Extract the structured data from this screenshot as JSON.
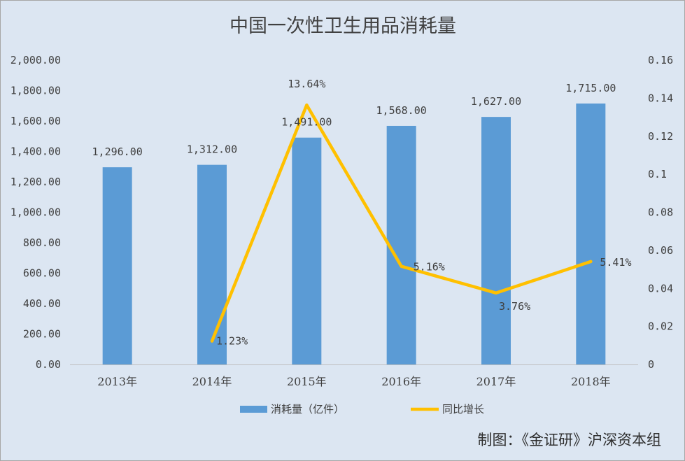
{
  "chart_data": {
    "type": "bar",
    "title": "中国一次性卫生用品消耗量",
    "categories": [
      "2013年",
      "2014年",
      "2015年",
      "2016年",
      "2017年",
      "2018年"
    ],
    "series": [
      {
        "name": "消耗量（亿件）",
        "type": "bar",
        "axis": "left",
        "values": [
          1296.0,
          1312.0,
          1491.0,
          1568.0,
          1627.0,
          1715.0
        ],
        "labels": [
          "1,296.00",
          "1,312.00",
          "1,491.00",
          "1,568.00",
          "1,627.00",
          "1,715.00"
        ],
        "color": "#5b9bd5"
      },
      {
        "name": "同比增长",
        "type": "line",
        "axis": "right",
        "x": [
          "2014年",
          "2015年",
          "2016年",
          "2017年",
          "2018年"
        ],
        "values": [
          0.0123,
          0.1364,
          0.0516,
          0.0376,
          0.0541
        ],
        "labels": [
          "1.23%",
          "13.64%",
          "5.16%",
          "3.76%",
          "5.41%"
        ],
        "color": "#ffc000"
      }
    ],
    "y_left": {
      "ylim": [
        0,
        2000
      ],
      "ticks": [
        0,
        200,
        400,
        600,
        800,
        1000,
        1200,
        1400,
        1600,
        1800,
        2000
      ],
      "tick_labels": [
        "0.00",
        "200.00",
        "400.00",
        "600.00",
        "800.00",
        "1,000.00",
        "1,200.00",
        "1,400.00",
        "1,600.00",
        "1,800.00",
        "2,000.00"
      ]
    },
    "y_right": {
      "ylim": [
        0,
        0.16
      ],
      "ticks": [
        0,
        0.02,
        0.04,
        0.06,
        0.08,
        0.1,
        0.12,
        0.14,
        0.16
      ],
      "tick_labels": [
        "0",
        "0.02",
        "0.04",
        "0.06",
        "0.08",
        "0.1",
        "0.12",
        "0.14",
        "0.16"
      ]
    },
    "grid": false,
    "legend": "bottom",
    "background": "#dce6f2",
    "credit": "制图：《金证研》沪深资本组"
  }
}
